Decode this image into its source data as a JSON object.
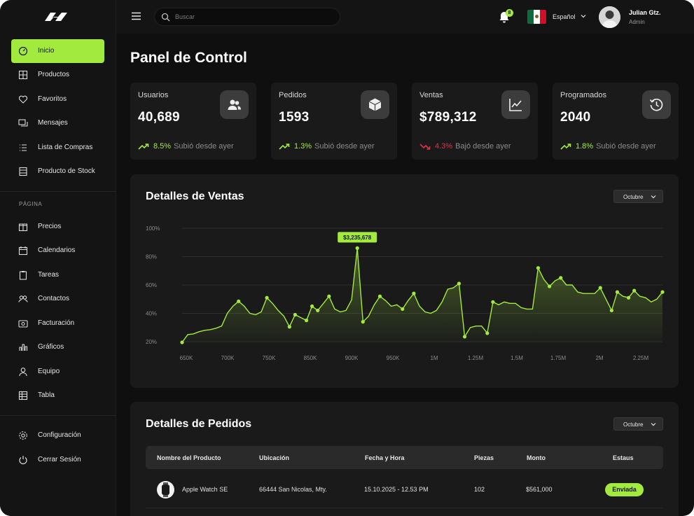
{
  "colors": {
    "accent": "#a3ea3f",
    "down": "#e0304a",
    "bg": "#0f0f0f",
    "panel": "#1a1a1a"
  },
  "topbar": {
    "search_placeholder": "Buscar",
    "notifications_count": "8",
    "language": "Español",
    "user_name": "Julian Gtz.",
    "user_role": "Admin"
  },
  "sidebar": {
    "items": [
      {
        "label": "Inicio",
        "icon": "dashboard-icon"
      },
      {
        "label": "Productos",
        "icon": "grid-icon"
      },
      {
        "label": "Favoritos",
        "icon": "heart-icon"
      },
      {
        "label": "Mensajes",
        "icon": "chat-icon"
      },
      {
        "label": "Lista de Compras",
        "icon": "list-icon"
      },
      {
        "label": "Producto de Stock",
        "icon": "stock-icon"
      }
    ],
    "section_label": "PÁGINA",
    "page_items": [
      {
        "label": "Precios",
        "icon": "gift-icon"
      },
      {
        "label": "Calendarios",
        "icon": "calendar-icon"
      },
      {
        "label": "Tareas",
        "icon": "clipboard-icon"
      },
      {
        "label": "Contactos",
        "icon": "contacts-icon"
      },
      {
        "label": "Facturación",
        "icon": "billing-icon"
      },
      {
        "label": "Gráficos",
        "icon": "bar-chart-icon"
      },
      {
        "label": "Equipo",
        "icon": "user-icon"
      },
      {
        "label": "Tabla",
        "icon": "table-icon"
      }
    ],
    "bottom_items": [
      {
        "label": "Configuración",
        "icon": "gear-icon"
      },
      {
        "label": "Cerrar Sesión",
        "icon": "power-icon"
      }
    ]
  },
  "page_title": "Panel de Control",
  "stats": [
    {
      "title": "Usuarios",
      "value": "40,689",
      "pct": "8.5%",
      "desc": "Subió desde ayer",
      "direction": "up",
      "icon": "users-icon"
    },
    {
      "title": "Pedidos",
      "value": "1593",
      "pct": "1.3%",
      "desc": "Subió desde ayer",
      "direction": "up",
      "icon": "box-icon"
    },
    {
      "title": "Ventas",
      "value": "$789,312",
      "pct": "4.3%",
      "desc": "Bajó desde ayer",
      "direction": "down",
      "icon": "line-chart-icon"
    },
    {
      "title": "Programados",
      "value": "2040",
      "pct": "1.8%",
      "desc": "Subió desde ayer",
      "direction": "up",
      "icon": "history-icon"
    }
  ],
  "sales": {
    "title": "Detalles de Ventas",
    "dropdown": "Octubre",
    "tooltip": "$3,235,678"
  },
  "chart_data": {
    "type": "area",
    "title": "Detalles de Ventas",
    "y_ticks": [
      "100%",
      "80%",
      "60%",
      "40%",
      "20%"
    ],
    "x_ticks": [
      "650K",
      "700K",
      "750K",
      "850K",
      "900K",
      "950K",
      "1M",
      "1.25M",
      "1.5M",
      "1.75M",
      "2M",
      "2.25M"
    ],
    "ylim": [
      20,
      100
    ],
    "grid": true,
    "series": [
      {
        "values": [
          19.5,
          25,
          25.5,
          27,
          28,
          28.5,
          29.5,
          31,
          40,
          45,
          48.5,
          45,
          40,
          39,
          41,
          51,
          47,
          42,
          38,
          30.5,
          39,
          37,
          35,
          45,
          42,
          47,
          52,
          43,
          41,
          42,
          49.5,
          86,
          34,
          38,
          46,
          52,
          49,
          45,
          46,
          43,
          49,
          54,
          45,
          41,
          40,
          42,
          48,
          57,
          58,
          61,
          23.5,
          30,
          31,
          31,
          26,
          48,
          46,
          48,
          47,
          47,
          44,
          43,
          43,
          72,
          64,
          59,
          63,
          65,
          60,
          60,
          55,
          54,
          54,
          54,
          58,
          50,
          42,
          55,
          52,
          51,
          56,
          52,
          51,
          48,
          50,
          55
        ]
      }
    ],
    "highlight": {
      "label": "$3,235,678",
      "value": 86
    }
  },
  "orders": {
    "title": "Detalles de Pedidos",
    "dropdown": "Octubre",
    "columns": [
      "Nombre del Producto",
      "Ubicación",
      "Fecha y Hora",
      "Piezas",
      "Monto",
      "Estaus"
    ],
    "rows": [
      {
        "product": "Apple Watch SE",
        "location": "66444 San Nicolas, Mty.",
        "datetime": "15.10.2025 - 12.53 PM",
        "pieces": "102",
        "amount": "$561,000",
        "status": "Enviada"
      }
    ]
  }
}
